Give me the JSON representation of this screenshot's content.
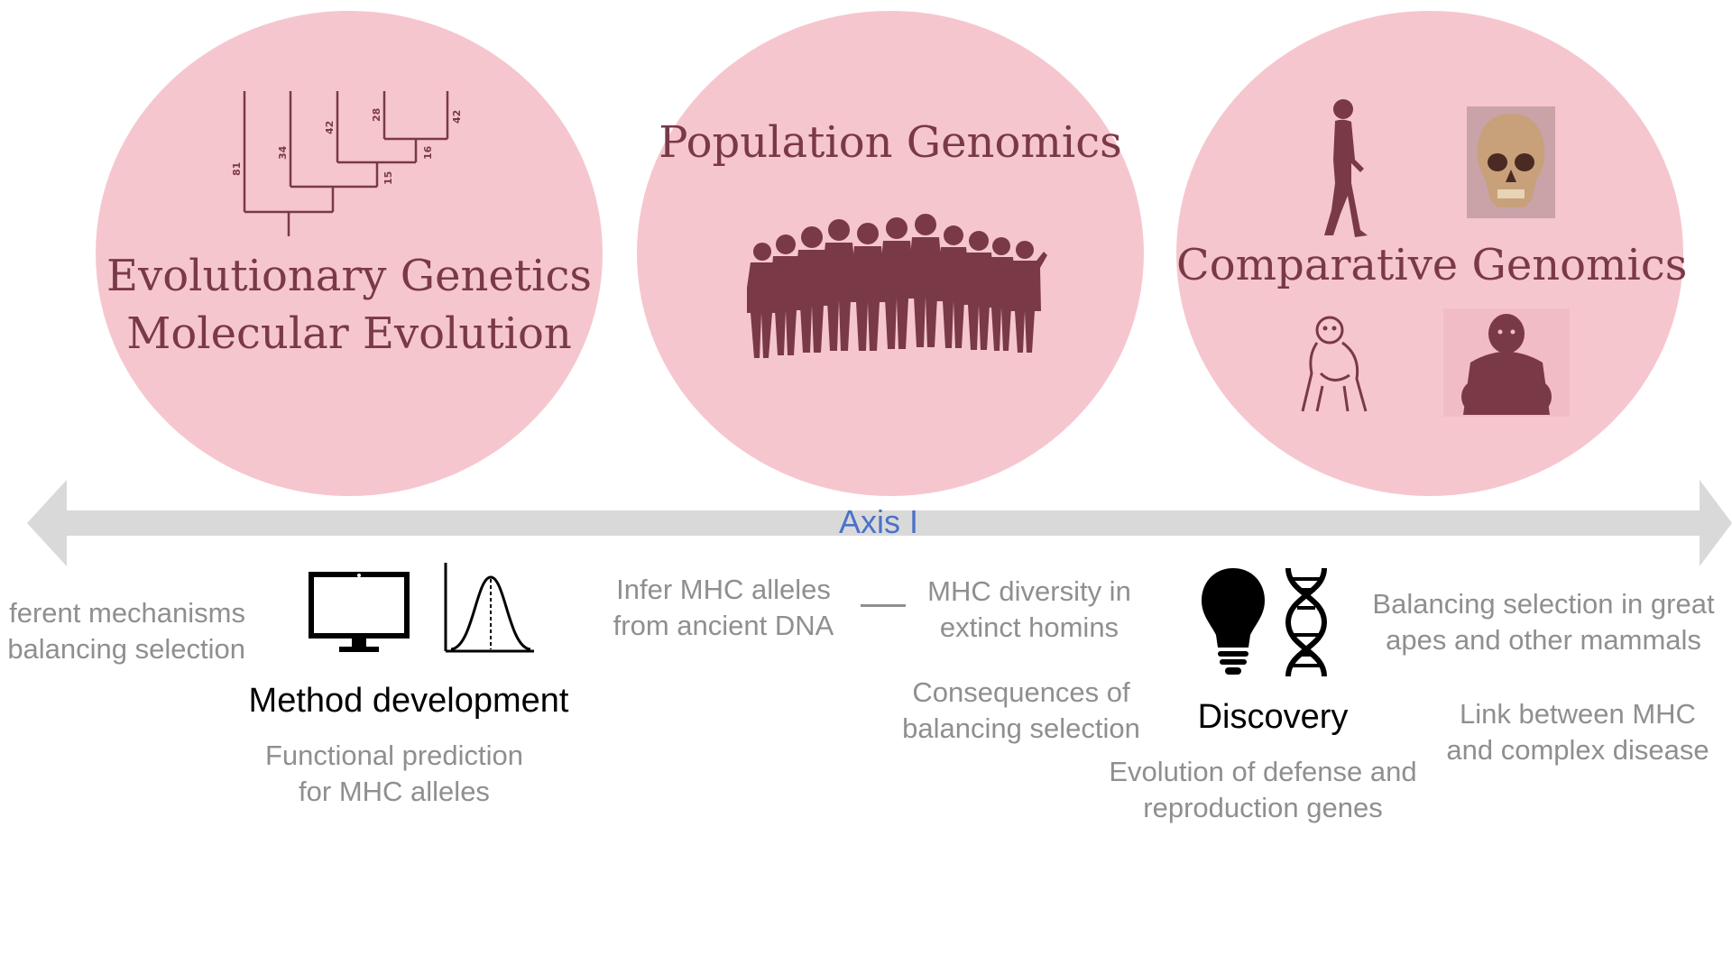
{
  "circles": {
    "evolutionary": {
      "title_line1": "Evolutionary Genetics",
      "title_line2": "Molecular Evolution",
      "tree_labels": [
        "81",
        "34",
        "42",
        "15",
        "28",
        "16",
        "42"
      ]
    },
    "population": {
      "title": "Population Genomics"
    },
    "comparative": {
      "title": "Comparative Genomics"
    }
  },
  "axis": {
    "label": "Axis I"
  },
  "items": {
    "left_cut": {
      "line1": "ferent mechanisms",
      "line2": "balancing selection"
    },
    "method": {
      "title": "Method development",
      "sub_line1": "Functional prediction",
      "sub_line2": "for MHC alleles"
    },
    "infer": {
      "line1": "Infer MHC alleles",
      "line2": "from ancient DNA"
    },
    "diversity": {
      "line1": "MHC diversity in",
      "line2": "extinct homins"
    },
    "consequences": {
      "line1": "Consequences of",
      "line2": "balancing selection"
    },
    "discovery": {
      "title": "Discovery",
      "sub_line1": "Evolution of defense and",
      "sub_line2": "reproduction genes"
    },
    "great_apes": {
      "line1": "Balancing selection in great",
      "line2": "apes and other mammals"
    },
    "link": {
      "line1": "Link between MHC",
      "line2": "and complex disease"
    }
  },
  "colors": {
    "circle_fill": "#f6c6ce",
    "circle_text": "#7a3946",
    "arrow": "#d9d9d9",
    "axis_label": "#4a72c8",
    "grey_text": "#8f8f8f"
  },
  "icons": [
    "phylogenetic-tree-icon",
    "crowd-silhouette-icon",
    "walking-woman-icon",
    "skull-icon",
    "chimpanzee-icon",
    "gorilla-icon",
    "computer-monitor-icon",
    "bell-curve-icon",
    "light-bulb-icon",
    "dna-helix-icon"
  ]
}
